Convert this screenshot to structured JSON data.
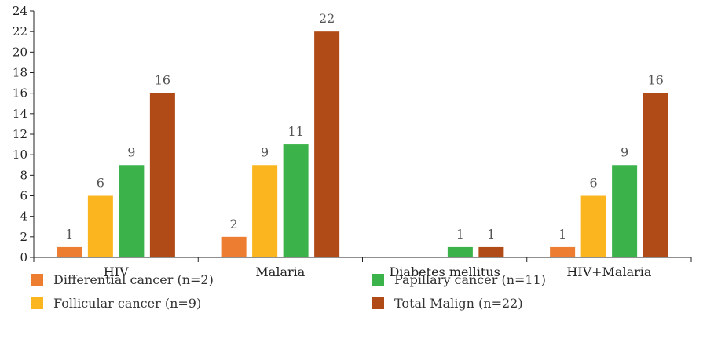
{
  "chart_data": {
    "type": "bar",
    "categories": [
      "HIV",
      "Malaria",
      "Diabetes mellitus",
      "HIV+Malaria"
    ],
    "series": [
      {
        "name": "Differential cancer (n=2)",
        "color": "#ED7D31",
        "values": [
          1,
          2,
          null,
          1
        ]
      },
      {
        "name": "Follicular cancer (n=9)",
        "color": "#FBB61F",
        "values": [
          6,
          9,
          null,
          6
        ]
      },
      {
        "name": "Papillary cancer (n=11)",
        "color": "#3CB34A",
        "values": [
          9,
          11,
          1,
          9
        ]
      },
      {
        "name": "Total Malign (n=22)",
        "color": "#B04A17",
        "values": [
          16,
          22,
          1,
          16
        ]
      }
    ],
    "ylim": [
      0,
      24
    ],
    "yticks": [
      0,
      2,
      4,
      6,
      8,
      10,
      12,
      14,
      16,
      18,
      20,
      22,
      24
    ],
    "grid": false,
    "data_labels": true,
    "legend_position": "bottom",
    "title": "",
    "xlabel": "",
    "ylabel": ""
  }
}
